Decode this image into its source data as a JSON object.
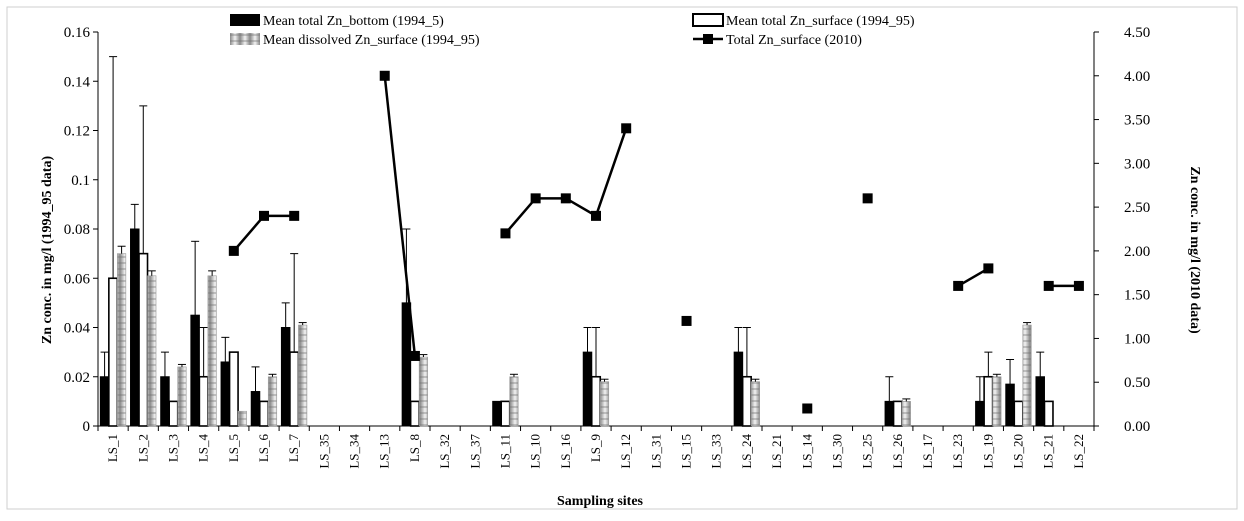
{
  "chart_data": {
    "type": "bar",
    "xlabel": "Sampling sites",
    "ylabel": "Zn conc. in mg/l (1994_95 data)",
    "y2label": "Zn conc. in mg/l (2010 data)",
    "ylim": [
      0,
      0.16
    ],
    "y2lim": [
      0,
      4.5
    ],
    "y_ticks": [
      "0",
      "0.02",
      "0.04",
      "0.06",
      "0.08",
      "0.1",
      "0.12",
      "0.14",
      "0.16"
    ],
    "y2_ticks": [
      "0.00",
      "0.50",
      "1.00",
      "1.50",
      "2.00",
      "2.50",
      "3.00",
      "3.50",
      "4.00",
      "4.50"
    ],
    "legend_position": "top",
    "grid": false,
    "categories": [
      "LS_1",
      "LS_2",
      "LS_3",
      "LS_4",
      "LS_5",
      "LS_6",
      "LS_7",
      "LS_35",
      "LS_34",
      "LS_13",
      "LS_8",
      "LS_32",
      "LS_37",
      "LS_11",
      "LS_10",
      "LS_16",
      "LS_9",
      "LS_12",
      "LS_31",
      "LS_15",
      "LS_33",
      "LS_24",
      "LS_21",
      "LS_14",
      "LS_30",
      "LS_25",
      "LS_26",
      "LS_17",
      "LS_23",
      "LS_19",
      "LS_20",
      "LS_21",
      "LS_22"
    ],
    "series": [
      {
        "name": "Mean total Zn_bottom (1994_5)",
        "kind": "bar",
        "axis": "left",
        "color": "#000000",
        "values": [
          0.02,
          0.08,
          0.02,
          0.045,
          0.026,
          0.014,
          0.04,
          null,
          null,
          null,
          0.05,
          null,
          null,
          0.01,
          null,
          null,
          0.03,
          null,
          null,
          null,
          null,
          0.03,
          null,
          null,
          null,
          null,
          0.01,
          null,
          null,
          0.01,
          0.017,
          0.02,
          null
        ],
        "error": [
          0.01,
          0.01,
          0.01,
          0.03,
          0.01,
          0.01,
          0.01,
          null,
          null,
          null,
          0.03,
          null,
          null,
          null,
          null,
          null,
          0.01,
          null,
          null,
          null,
          null,
          0.01,
          null,
          null,
          null,
          null,
          0.01,
          null,
          null,
          0.01,
          0.01,
          0.01,
          null
        ]
      },
      {
        "name": "Mean total Zn_surface (1994_95)",
        "kind": "bar",
        "axis": "left",
        "color": "#ffffff",
        "values": [
          0.06,
          0.07,
          0.01,
          0.02,
          0.03,
          0.01,
          0.03,
          null,
          null,
          null,
          0.01,
          null,
          null,
          0.01,
          null,
          null,
          0.02,
          null,
          null,
          null,
          null,
          0.02,
          null,
          null,
          null,
          null,
          0.01,
          null,
          null,
          0.02,
          0.01,
          0.01,
          null
        ],
        "error": [
          0.09,
          0.06,
          null,
          0.02,
          null,
          null,
          0.04,
          null,
          null,
          null,
          null,
          null,
          null,
          null,
          null,
          null,
          0.02,
          null,
          null,
          null,
          null,
          0.02,
          null,
          null,
          null,
          null,
          null,
          null,
          null,
          0.01,
          null,
          null,
          null
        ]
      },
      {
        "name": "Mean dissolved Zn_surface (1994_95)",
        "kind": "bar",
        "axis": "left",
        "color": "#bdbdbd",
        "values": [
          0.07,
          0.061,
          0.024,
          0.061,
          0.006,
          0.02,
          0.041,
          null,
          null,
          null,
          0.028,
          null,
          null,
          0.02,
          null,
          null,
          0.018,
          null,
          null,
          null,
          null,
          0.018,
          null,
          null,
          null,
          null,
          0.01,
          null,
          null,
          0.02,
          0.041,
          null,
          null
        ],
        "error": [
          0.003,
          0.002,
          0.001,
          0.002,
          null,
          0.001,
          0.001,
          null,
          null,
          null,
          0.001,
          null,
          null,
          0.001,
          null,
          null,
          0.001,
          null,
          null,
          null,
          null,
          0.001,
          null,
          null,
          null,
          null,
          0.001,
          null,
          null,
          0.001,
          0.001,
          null,
          null
        ]
      },
      {
        "name": "Total Zn_surface (2010)",
        "kind": "line",
        "axis": "right",
        "color": "#000000",
        "values": [
          null,
          null,
          null,
          null,
          2.0,
          2.4,
          2.4,
          null,
          null,
          4.0,
          0.8,
          null,
          null,
          2.2,
          2.6,
          2.6,
          2.4,
          3.4,
          null,
          1.2,
          null,
          null,
          null,
          0.2,
          null,
          2.6,
          null,
          null,
          1.6,
          1.8,
          null,
          1.6,
          1.6
        ]
      }
    ]
  }
}
